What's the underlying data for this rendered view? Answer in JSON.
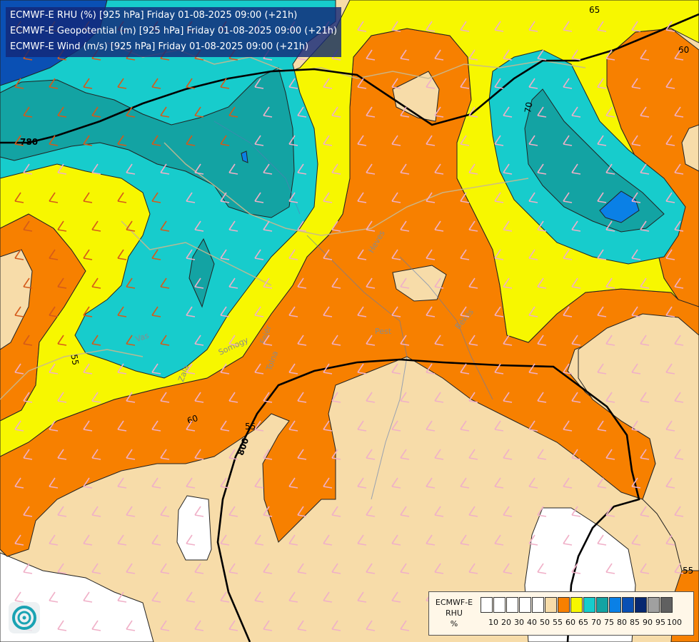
{
  "titles": [
    "ECMWF-E RHU (%) [925 hPa] Friday 01-08-2025 09:00 (+21h)",
    "ECMWF-E Geopotential (m) [925 hPa] Friday 01-08-2025 09:00 (+21h)",
    "ECMWF-E Wind (m/s) [925 hPa] Friday 01-08-2025 09:00 (+21h)"
  ],
  "legend": {
    "title_line1": "ECMWF-E",
    "title_line2": "RHU",
    "title_line3": "%",
    "tick_labels": [
      "10",
      "20",
      "30",
      "40",
      "50",
      "55",
      "60",
      "65",
      "70",
      "75",
      "80",
      "85",
      "90",
      "95",
      "100"
    ],
    "colors": [
      "#ffffff",
      "#ffffff",
      "#ffffff",
      "#ffffff",
      "#ffffff",
      "#f7dca9",
      "#f78000",
      "#f7f700",
      "#17cccc",
      "#13a3a3",
      "#0a80e6",
      "#0a50b4",
      "#072870",
      "#a0a0a0",
      "#606060"
    ]
  },
  "field_colors": {
    "rhu_50_55": "#f7dca9",
    "rhu_55_60": "#f78000",
    "rhu_60_65": "#f7f700",
    "rhu_65_70": "#17cccc",
    "rhu_70_75": "#13a3a3",
    "rhu_75_80": "#0a80e6",
    "rhu_below_50": "#ffffff",
    "rhu_top_left": "#0a50b4"
  },
  "contour_labels": {
    "rhu": [
      "65",
      "60",
      "70",
      "60",
      "55",
      "55",
      "55",
      "55"
    ],
    "geopotential": [
      "780",
      "800"
    ]
  },
  "region_labels": [
    "Heves",
    "Pest",
    "Békés",
    "Vas",
    "Somogy",
    "Fejér",
    "Tolna",
    "Zala"
  ]
}
